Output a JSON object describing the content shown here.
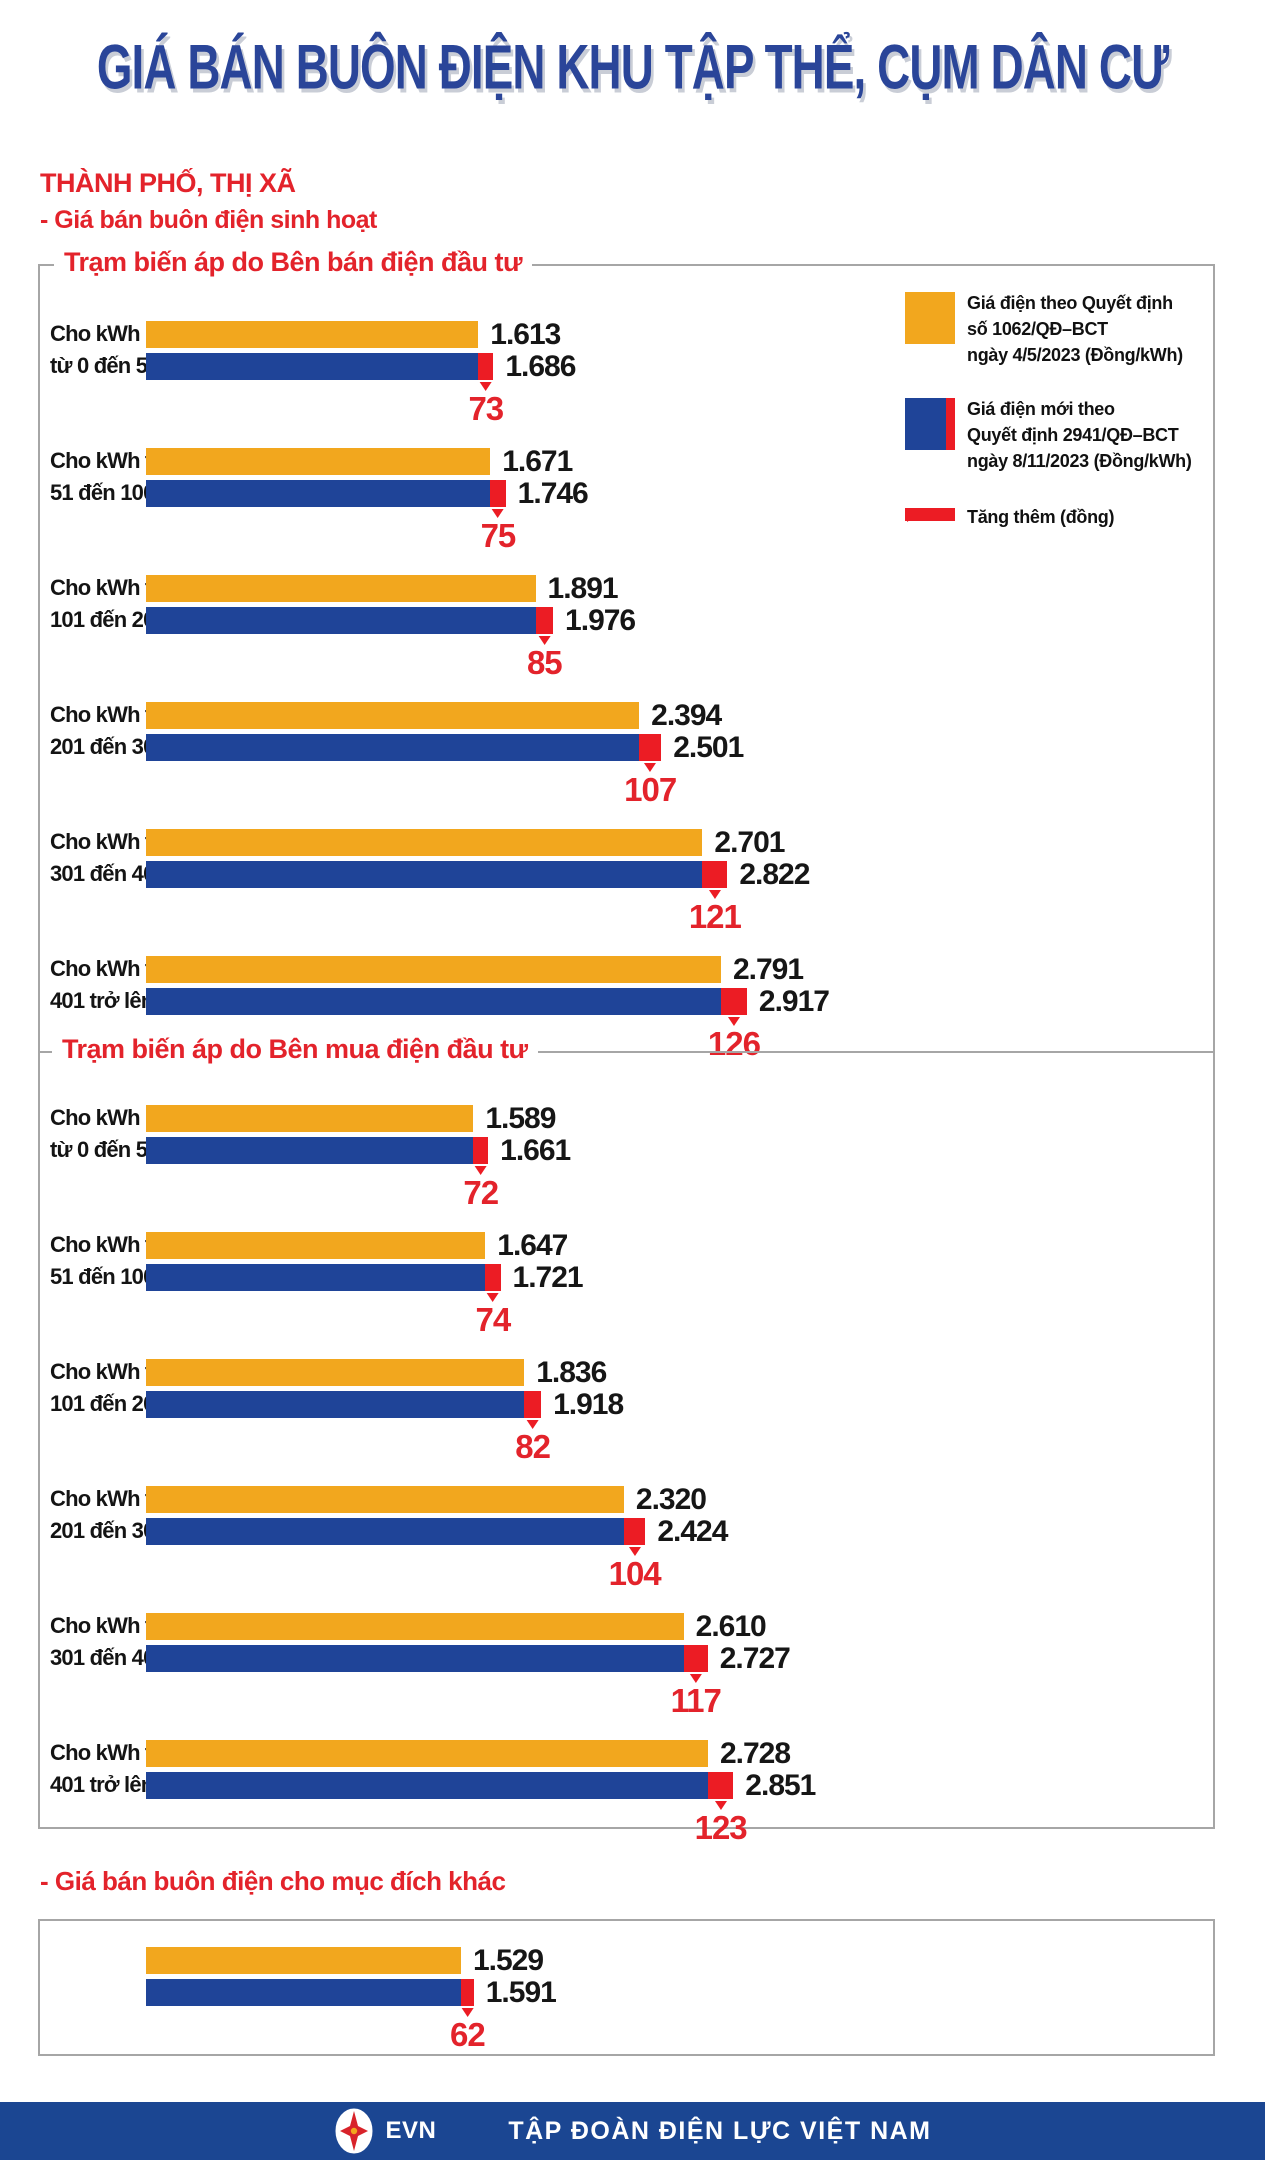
{
  "title": "GIÁ BÁN BUÔN ĐIỆN KHU TẬP THỂ, CỤM DÂN CƯ",
  "region_label": "THÀNH PHỐ, THỊ XÃ",
  "subtitle_residential": "- Giá bán buôn điện sinh hoạt",
  "subtitle_other": "- Giá bán buôn điện cho mục đích khác",
  "colors": {
    "old_price": "#F2A71E",
    "new_price": "#1F4498",
    "increase": "#EC1C24",
    "title_blue": "#2A4599",
    "heading_red": "#E3232B",
    "footer_blue": "#1B4692"
  },
  "legend": {
    "old_price": {
      "lines": [
        "Giá điện theo Quyết định",
        "số 1062/QĐ–BCT",
        "ngày 4/5/2023 (Đồng/kWh)"
      ]
    },
    "new_price": {
      "lines": [
        "Giá điện mới theo",
        "Quyết định 2941/QĐ–BCT",
        "ngày 8/11/2023 (Đồng/kWh)"
      ]
    },
    "increase": {
      "label": "Tăng thêm (đồng)"
    }
  },
  "footer": {
    "logo_text": "EVN",
    "company": "TẬP ĐOÀN ĐIỆN LỰC VIỆT NAM"
  },
  "chart_data": {
    "type": "bar",
    "orientation": "horizontal",
    "unit": "Đồng/kWh",
    "series": [
      {
        "name": "Giá điện theo Quyết định số 1062/QĐ–BCT ngày 4/5/2023 (Đồng/kWh)",
        "color": "#F2A71E"
      },
      {
        "name": "Giá điện mới theo Quyết định 2941/QĐ–BCT ngày 8/11/2023 (Đồng/kWh)",
        "color": "#1F4498"
      },
      {
        "name": "Tăng thêm (đồng)",
        "color": "#EC1C24"
      }
    ],
    "sections": [
      {
        "title": "Trạm biến áp do Bên bán điện đầu tư",
        "rows": [
          {
            "label_lines": [
              "Cho kWh",
              "từ 0 đến 50"
            ],
            "old": 1613,
            "old_label": "1.613",
            "new": 1686,
            "new_label": "1.686",
            "increase": 73,
            "increase_label": "73"
          },
          {
            "label_lines": [
              "Cho kWh từ",
              "51 đến 100"
            ],
            "old": 1671,
            "old_label": "1.671",
            "new": 1746,
            "new_label": "1.746",
            "increase": 75,
            "increase_label": "75"
          },
          {
            "label_lines": [
              "Cho kWh từ",
              "101 đến 200"
            ],
            "old": 1891,
            "old_label": "1.891",
            "new": 1976,
            "new_label": "1.976",
            "increase": 85,
            "increase_label": "85"
          },
          {
            "label_lines": [
              "Cho kWh từ",
              "201 đến 300"
            ],
            "old": 2394,
            "old_label": "2.394",
            "new": 2501,
            "new_label": "2.501",
            "increase": 107,
            "increase_label": "107"
          },
          {
            "label_lines": [
              "Cho kWh từ",
              "301 đến 400"
            ],
            "old": 2701,
            "old_label": "2.701",
            "new": 2822,
            "new_label": "2.822",
            "increase": 121,
            "increase_label": "121"
          },
          {
            "label_lines": [
              "Cho kWh từ",
              "401 trở lên"
            ],
            "old": 2791,
            "old_label": "2.791",
            "new": 2917,
            "new_label": "2.917",
            "increase": 126,
            "increase_label": "126"
          }
        ]
      },
      {
        "title": "Trạm biến áp do Bên mua điện đầu tư",
        "rows": [
          {
            "label_lines": [
              "Cho kWh",
              "từ 0 đến 50"
            ],
            "old": 1589,
            "old_label": "1.589",
            "new": 1661,
            "new_label": "1.661",
            "increase": 72,
            "increase_label": "72"
          },
          {
            "label_lines": [
              "Cho kWh từ",
              "51 đến 100"
            ],
            "old": 1647,
            "old_label": "1.647",
            "new": 1721,
            "new_label": "1.721",
            "increase": 74,
            "increase_label": "74"
          },
          {
            "label_lines": [
              "Cho kWh từ",
              "101 đến 200"
            ],
            "old": 1836,
            "old_label": "1.836",
            "new": 1918,
            "new_label": "1.918",
            "increase": 82,
            "increase_label": "82"
          },
          {
            "label_lines": [
              "Cho kWh từ",
              "201 đến 300"
            ],
            "old": 2320,
            "old_label": "2.320",
            "new": 2424,
            "new_label": "2.424",
            "increase": 104,
            "increase_label": "104"
          },
          {
            "label_lines": [
              "Cho kWh từ",
              "301 đến 400"
            ],
            "old": 2610,
            "old_label": "2.610",
            "new": 2727,
            "new_label": "2.727",
            "increase": 117,
            "increase_label": "117"
          },
          {
            "label_lines": [
              "Cho kWh từ",
              "401 trở lên"
            ],
            "old": 2728,
            "old_label": "2.728",
            "new": 2851,
            "new_label": "2.851",
            "increase": 123,
            "increase_label": "123"
          }
        ]
      },
      {
        "title": null,
        "rows": [
          {
            "label_lines": [],
            "old": 1529,
            "old_label": "1.529",
            "new": 1591,
            "new_label": "1.591",
            "increase": 62,
            "increase_label": "62"
          }
        ]
      }
    ]
  }
}
